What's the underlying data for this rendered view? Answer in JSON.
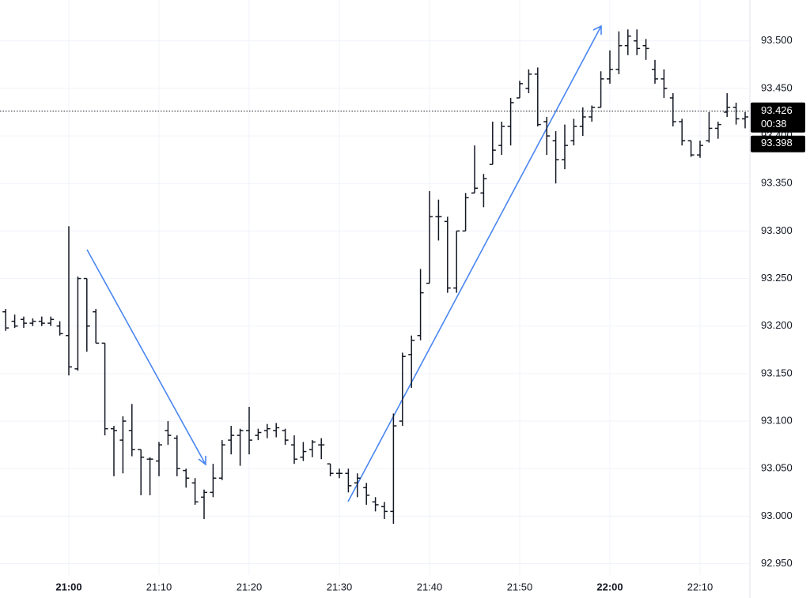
{
  "chart_data": {
    "type": "ohlc",
    "color": "#131722",
    "categories": [
      null,
      null,
      null,
      null,
      null,
      null,
      null,
      "21:00",
      null,
      null,
      null,
      null,
      null,
      null,
      null,
      null,
      null,
      "21:10",
      null,
      null,
      null,
      null,
      null,
      null,
      null,
      null,
      null,
      "21:20",
      null,
      null,
      null,
      null,
      null,
      null,
      null,
      null,
      null,
      "21:30",
      null,
      null,
      null,
      null,
      null,
      null,
      null,
      null,
      null,
      "21:40",
      null,
      null,
      null,
      null,
      null,
      null,
      null,
      null,
      null,
      "21:50",
      null,
      null,
      null,
      null,
      null,
      null,
      null,
      null,
      null,
      "22:00",
      null,
      null,
      null,
      null,
      null,
      null,
      null,
      null,
      null,
      "22:10",
      null,
      null,
      null,
      null,
      null
    ],
    "open": [
      93.215,
      93.205,
      93.207,
      93.203,
      93.205,
      93.203,
      93.2,
      93.19,
      93.155,
      93.25,
      93.215,
      93.182,
      93.092,
      93.08,
      93.09,
      93.07,
      93.06,
      93.058,
      93.09,
      93.082,
      93.048,
      93.035,
      93.02,
      93.025,
      93.04,
      93.08,
      93.085,
      93.09,
      93.085,
      93.09,
      93.09,
      93.09,
      93.075,
      93.062,
      93.07,
      93.075,
      93.055,
      93.045,
      93.045,
      93.035,
      93.03,
      93.015,
      93.01,
      93.005,
      93.1,
      93.17,
      93.19,
      93.245,
      93.315,
      93.31,
      93.24,
      93.3,
      93.34,
      93.34,
      93.37,
      93.39,
      93.41,
      93.44,
      93.45,
      93.465,
      93.415,
      93.395,
      93.375,
      93.395,
      93.41,
      93.42,
      93.43,
      93.46,
      93.47,
      93.495,
      93.5,
      93.495,
      93.47,
      93.46,
      93.44,
      93.415,
      93.395,
      93.38,
      93.395,
      93.408,
      93.425,
      93.43,
      93.418
    ],
    "high": [
      93.218,
      93.212,
      93.21,
      93.208,
      93.21,
      93.21,
      93.205,
      93.305,
      93.252,
      93.25,
      93.218,
      93.182,
      93.095,
      93.105,
      93.118,
      93.07,
      93.062,
      93.078,
      93.1,
      93.085,
      93.05,
      93.04,
      93.028,
      93.055,
      93.08,
      93.095,
      93.092,
      93.115,
      93.092,
      93.097,
      93.098,
      93.092,
      93.085,
      93.078,
      93.08,
      93.082,
      93.055,
      93.05,
      93.05,
      93.045,
      93.035,
      93.02,
      93.015,
      93.108,
      93.172,
      93.19,
      93.26,
      93.342,
      93.333,
      93.315,
      93.3,
      93.34,
      93.39,
      93.36,
      93.415,
      93.415,
      93.44,
      93.458,
      93.47,
      93.472,
      93.42,
      93.405,
      93.412,
      93.418,
      93.43,
      93.432,
      93.468,
      93.49,
      93.51,
      93.512,
      93.512,
      93.502,
      93.48,
      93.47,
      93.445,
      93.418,
      93.395,
      93.395,
      93.425,
      93.415,
      93.445,
      93.435,
      93.425
    ],
    "low": [
      93.195,
      93.198,
      93.198,
      93.2,
      93.2,
      93.2,
      93.19,
      93.148,
      93.153,
      93.173,
      93.182,
      93.085,
      93.042,
      93.045,
      93.063,
      93.022,
      93.022,
      93.042,
      93.075,
      93.042,
      93.03,
      93.012,
      92.997,
      93.02,
      93.038,
      93.065,
      93.053,
      93.065,
      93.08,
      93.082,
      93.083,
      93.075,
      93.055,
      93.058,
      93.062,
      93.06,
      93.042,
      93.04,
      93.025,
      93.02,
      93.012,
      93.005,
      92.997,
      92.992,
      93.095,
      93.135,
      93.185,
      93.245,
      93.29,
      93.235,
      93.235,
      93.3,
      93.34,
      93.325,
      93.37,
      93.38,
      93.39,
      93.44,
      93.445,
      93.41,
      93.38,
      93.35,
      93.365,
      93.39,
      93.4,
      93.415,
      93.43,
      93.455,
      93.465,
      93.485,
      93.485,
      93.48,
      93.455,
      93.44,
      93.41,
      93.39,
      93.378,
      93.377,
      93.393,
      93.397,
      93.42,
      93.412,
      93.408
    ],
    "close": [
      93.198,
      93.2,
      93.203,
      93.205,
      93.203,
      93.207,
      93.192,
      93.157,
      93.25,
      93.2,
      93.182,
      93.092,
      93.09,
      93.1,
      93.07,
      93.062,
      93.06,
      93.075,
      93.085,
      93.05,
      93.04,
      93.015,
      93.025,
      93.04,
      93.075,
      93.085,
      93.09,
      93.08,
      93.088,
      93.092,
      93.093,
      93.08,
      93.06,
      93.068,
      93.078,
      93.075,
      93.045,
      93.045,
      93.032,
      93.04,
      93.022,
      93.012,
      93.005,
      93.095,
      93.168,
      93.185,
      93.235,
      93.315,
      93.315,
      93.24,
      93.3,
      93.335,
      93.345,
      93.355,
      93.385,
      93.41,
      93.435,
      93.455,
      93.465,
      93.412,
      93.4,
      93.375,
      93.39,
      93.41,
      93.42,
      93.43,
      93.46,
      93.47,
      93.495,
      93.505,
      93.492,
      93.492,
      93.46,
      93.45,
      93.415,
      93.395,
      93.38,
      93.39,
      93.408,
      93.412,
      93.43,
      93.418,
      93.42
    ],
    "ylim": [
      92.938,
      93.543
    ],
    "yticks": [
      {
        "value": 92.95,
        "label": "92.950"
      },
      {
        "value": 93.0,
        "label": "93.000"
      },
      {
        "value": 93.05,
        "label": "93.050"
      },
      {
        "value": 93.1,
        "label": "93.100"
      },
      {
        "value": 93.15,
        "label": "93.150"
      },
      {
        "value": 93.2,
        "label": "93.200"
      },
      {
        "value": 93.25,
        "label": "93.250"
      },
      {
        "value": 93.3,
        "label": "93.300"
      },
      {
        "value": 93.35,
        "label": "93.350"
      },
      {
        "value": 93.4,
        "label": "93.400"
      },
      {
        "value": 93.45,
        "label": "93.450"
      },
      {
        "value": 93.5,
        "label": "93.500"
      }
    ],
    "grid": true,
    "last_price": 93.426,
    "countdown": "00:38",
    "marker_price": 93.398
  }
}
